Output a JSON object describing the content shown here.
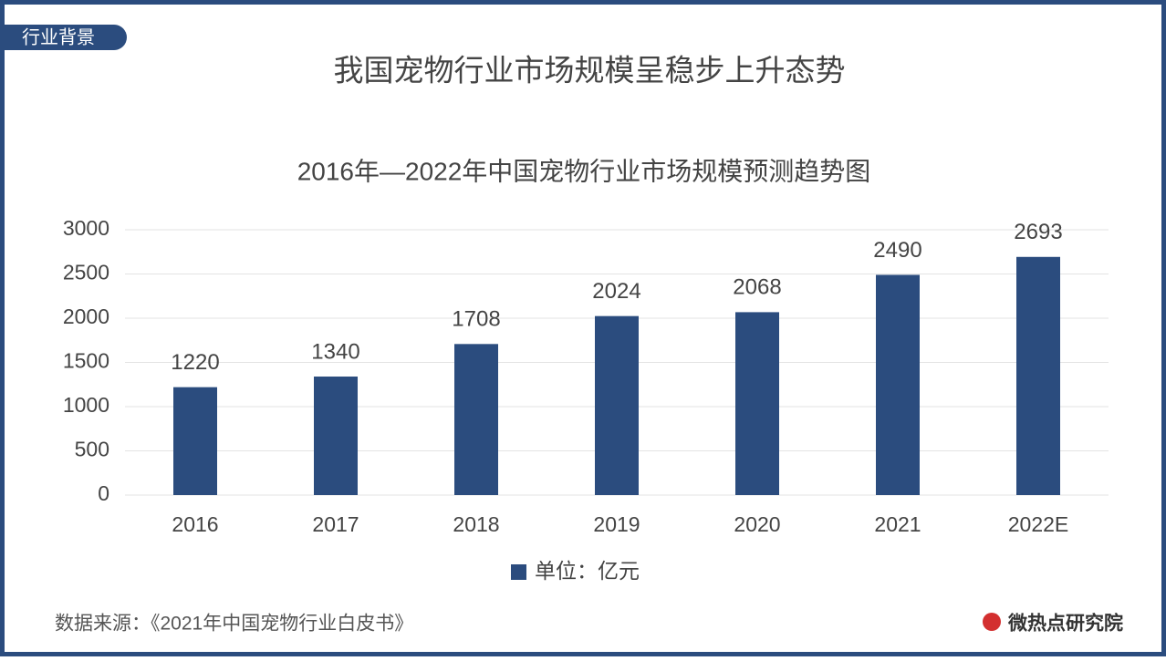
{
  "header": {
    "tag": "行业背景",
    "title": "我国宠物行业市场规模呈稳步上升态势"
  },
  "chart_data": {
    "type": "bar",
    "title": "2016年—2022年中国宠物行业市场规模预测趋势图",
    "categories": [
      "2016",
      "2017",
      "2018",
      "2019",
      "2020",
      "2021",
      "2022E"
    ],
    "series": [
      {
        "name": "单位：亿元",
        "color": "#2b4c7e",
        "values": [
          1220,
          1340,
          1708,
          2024,
          2068,
          2490,
          2693
        ]
      }
    ],
    "ylim": [
      0,
      3000
    ],
    "yticks": [
      0,
      500,
      1000,
      1500,
      2000,
      2500,
      3000
    ],
    "grid": true,
    "legend": "bottom"
  },
  "footer": {
    "source": "数据来源：《2021年中国宠物行业白皮书》",
    "brand": "微热点研究院"
  }
}
